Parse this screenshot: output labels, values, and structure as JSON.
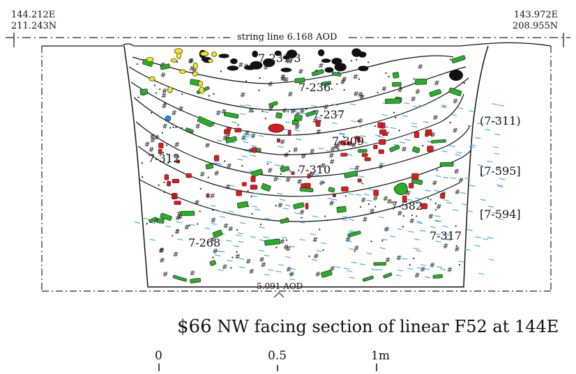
{
  "coordinates": {
    "left_e": "144.212E",
    "left_n": "211.243N",
    "right_e": "143.972E",
    "right_n": "208.955N"
  },
  "string_line": "string line 6.168 AOD",
  "base_level": "5.091 AOD",
  "layers": [
    {
      "id": "7-231/3"
    },
    {
      "id": "7-236"
    },
    {
      "id": "7-237"
    },
    {
      "id": "(7-311)"
    },
    {
      "id": "7-309"
    },
    {
      "id": "7-312"
    },
    {
      "id": "7-310"
    },
    {
      "id": "[7-595]"
    },
    {
      "id": "7-582"
    },
    {
      "id": "[7-594]"
    },
    {
      "id": "7-317"
    },
    {
      "id": "7-268"
    }
  ],
  "caption": {
    "number": "$66",
    "text": "NW facing section of linear F52 at 144E"
  },
  "scale": {
    "labels": [
      "0",
      "0.5",
      "1m"
    ]
  },
  "colors": {
    "green": "#27b024",
    "red": "#e01a1a",
    "yellow": "#f4e41a",
    "black": "#111111",
    "blue": "#1f8fe0",
    "water": "#3aa6e8"
  }
}
